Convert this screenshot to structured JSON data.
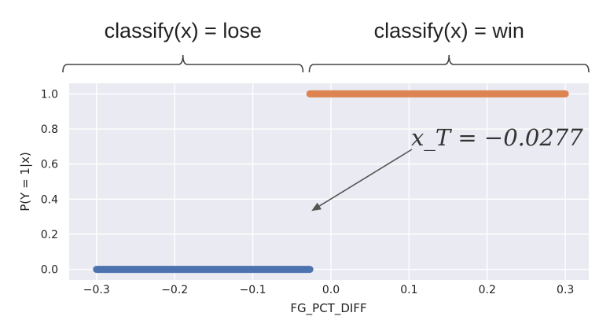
{
  "chart_data": {
    "type": "scatter",
    "xlabel": "FG_PCT_DIFF",
    "ylabel": "P(Y = 1|x)",
    "xlim": [
      -0.335,
      0.33
    ],
    "ylim": [
      -0.06,
      1.06
    ],
    "xticks": [
      -0.3,
      -0.2,
      -0.1,
      0.0,
      0.1,
      0.2,
      0.3
    ],
    "xtick_labels": [
      "−0.3",
      "−0.2",
      "−0.1",
      "0.0",
      "0.1",
      "0.2",
      "0.3"
    ],
    "yticks": [
      0.0,
      0.2,
      0.4,
      0.6,
      0.8,
      1.0
    ],
    "ytick_labels": [
      "0.0",
      "0.2",
      "0.4",
      "0.6",
      "0.8",
      "1.0"
    ],
    "grid": true,
    "background": "#eaeaf2",
    "series": [
      {
        "color": "#4c72b0",
        "x_range": [
          -0.3,
          -0.027
        ],
        "y": 0
      },
      {
        "color": "#dd8452",
        "x_range": [
          -0.027,
          0.3
        ],
        "y": 1
      }
    ],
    "annotation": {
      "text": "x_T = −0.0277",
      "arrow_target": [
        -0.027,
        0.36
      ]
    },
    "regions": [
      {
        "label": "classify(x) = lose",
        "x_range": [
          -0.335,
          -0.0277
        ]
      },
      {
        "label": "classify(x) = win",
        "x_range": [
          -0.0277,
          0.33
        ]
      }
    ]
  }
}
